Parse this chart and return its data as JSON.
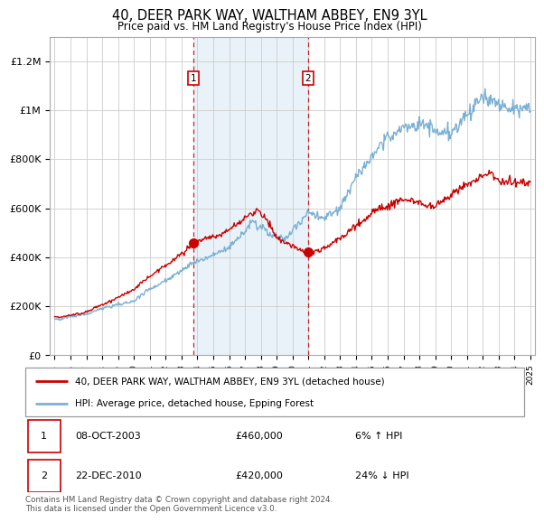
{
  "title": "40, DEER PARK WAY, WALTHAM ABBEY, EN9 3YL",
  "subtitle": "Price paid vs. HM Land Registry's House Price Index (HPI)",
  "title_fontsize": 10.5,
  "subtitle_fontsize": 8.5,
  "ylabel_ticks": [
    "£0",
    "£200K",
    "£400K",
    "£600K",
    "£800K",
    "£1M",
    "£1.2M"
  ],
  "ytick_values": [
    0,
    200000,
    400000,
    600000,
    800000,
    1000000,
    1200000
  ],
  "ylim": [
    0,
    1300000
  ],
  "xlim_start": 1994.7,
  "xlim_end": 2025.3,
  "line1_color": "#cc0000",
  "line2_color": "#7ab0d4",
  "background_shaded_color": "#d8e8f4",
  "shaded_alpha": 0.55,
  "sale1_date": 2003.77,
  "sale1_price": 460000,
  "sale1_label": "1",
  "sale2_date": 2010.97,
  "sale2_price": 420000,
  "sale2_label": "2",
  "legend_line1": "40, DEER PARK WAY, WALTHAM ABBEY, EN9 3YL (detached house)",
  "legend_line2": "HPI: Average price, detached house, Epping Forest",
  "table_row1": [
    "1",
    "08-OCT-2003",
    "£460,000",
    "6% ↑ HPI"
  ],
  "table_row2": [
    "2",
    "22-DEC-2010",
    "£420,000",
    "24% ↓ HPI"
  ],
  "footnote": "Contains HM Land Registry data © Crown copyright and database right 2024.\nThis data is licensed under the Open Government Licence v3.0.",
  "grid_color": "#cccccc",
  "shaded_xmin": 2003.77,
  "shaded_xmax": 2010.97
}
